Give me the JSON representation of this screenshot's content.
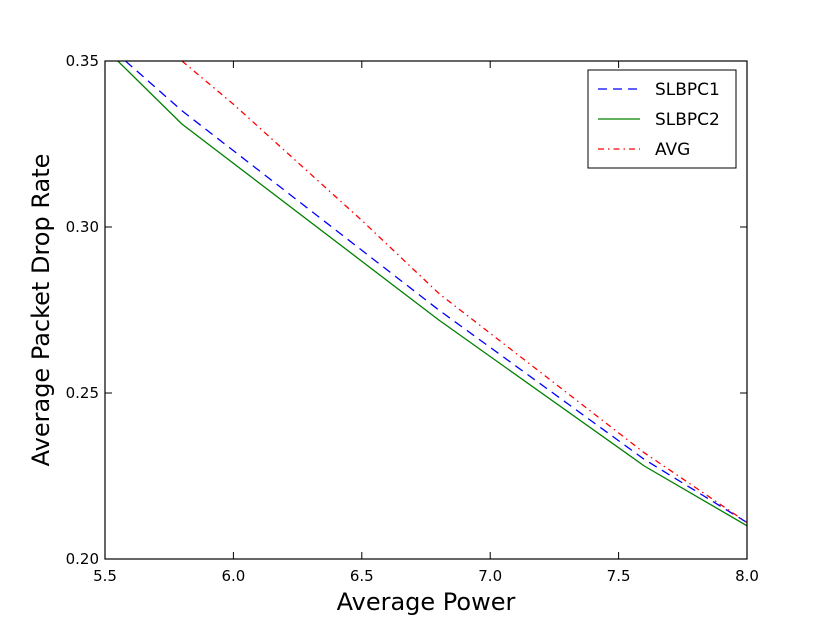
{
  "chart_data": {
    "type": "line",
    "xlabel": "Average Power",
    "ylabel": "Average Packet Drop Rate",
    "xlim": [
      5.5,
      8.0
    ],
    "ylim": [
      0.2,
      0.35
    ],
    "xticks": [
      5.5,
      6.0,
      6.5,
      7.0,
      7.5,
      8.0
    ],
    "xtick_labels": [
      "5.5",
      "6.0",
      "6.5",
      "7.0",
      "7.5",
      "8.0"
    ],
    "yticks": [
      0.2,
      0.25,
      0.3,
      0.35
    ],
    "ytick_labels": [
      "0.20",
      "0.25",
      "0.30",
      "0.35"
    ],
    "grid": false,
    "legend_position": "top-right",
    "series": [
      {
        "name": "SLBPC1",
        "color": "#0000ff",
        "style": "dashed",
        "x": [
          5.58,
          5.8,
          6.8,
          7.6,
          8.0
        ],
        "y": [
          0.35,
          0.335,
          0.275,
          0.23,
          0.211
        ]
      },
      {
        "name": "SLBPC2",
        "color": "#008000",
        "style": "solid",
        "x": [
          5.55,
          5.8,
          6.8,
          7.6,
          8.0
        ],
        "y": [
          0.35,
          0.331,
          0.272,
          0.228,
          0.21
        ]
      },
      {
        "name": "AVG",
        "color": "#ff0000",
        "style": "dashdot",
        "x": [
          5.8,
          6.0,
          6.5,
          6.8,
          7.6,
          8.0
        ],
        "y": [
          0.35,
          0.337,
          0.302,
          0.28,
          0.232,
          0.211
        ]
      }
    ]
  }
}
